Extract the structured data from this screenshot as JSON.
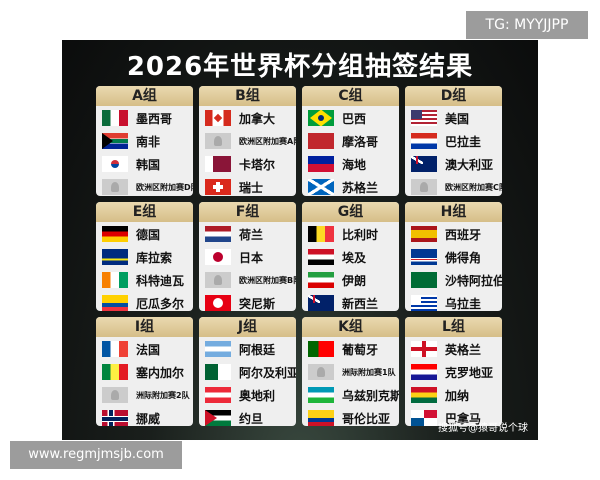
{
  "title": "2026年世界杯分组抽签结果",
  "badge": "TG: MYYJJPP",
  "website": "www.regmjmsjb.com",
  "credit": "搜狐号@猿哥说个球",
  "groups": [
    {
      "name": "A组",
      "teams": [
        {
          "name": "墨西哥",
          "flag": "mx"
        },
        {
          "name": "南非",
          "flag": "za"
        },
        {
          "name": "韩国",
          "flag": "kr"
        },
        {
          "name": "欧洲区附加赛D队",
          "flag": "ph"
        }
      ]
    },
    {
      "name": "B组",
      "teams": [
        {
          "name": "加拿大",
          "flag": "ca"
        },
        {
          "name": "欧洲区附加赛A队",
          "flag": "ph"
        },
        {
          "name": "卡塔尔",
          "flag": "qa"
        },
        {
          "name": "瑞士",
          "flag": "ch"
        }
      ]
    },
    {
      "name": "C组",
      "teams": [
        {
          "name": "巴西",
          "flag": "br"
        },
        {
          "name": "摩洛哥",
          "flag": "ma"
        },
        {
          "name": "海地",
          "flag": "ht"
        },
        {
          "name": "苏格兰",
          "flag": "sco"
        }
      ]
    },
    {
      "name": "D组",
      "teams": [
        {
          "name": "美国",
          "flag": "us"
        },
        {
          "name": "巴拉圭",
          "flag": "py"
        },
        {
          "name": "澳大利亚",
          "flag": "au"
        },
        {
          "name": "欧洲区附加赛C队",
          "flag": "ph"
        }
      ]
    },
    {
      "name": "E组",
      "teams": [
        {
          "name": "德国",
          "flag": "de"
        },
        {
          "name": "库拉索",
          "flag": "cw"
        },
        {
          "name": "科特迪瓦",
          "flag": "ci"
        },
        {
          "name": "厄瓜多尔",
          "flag": "ec"
        }
      ]
    },
    {
      "name": "F组",
      "teams": [
        {
          "name": "荷兰",
          "flag": "nl"
        },
        {
          "name": "日本",
          "flag": "jp"
        },
        {
          "name": "欧洲区附加赛B队",
          "flag": "ph"
        },
        {
          "name": "突尼斯",
          "flag": "tn"
        }
      ]
    },
    {
      "name": "G组",
      "teams": [
        {
          "name": "比利时",
          "flag": "be"
        },
        {
          "name": "埃及",
          "flag": "eg"
        },
        {
          "name": "伊朗",
          "flag": "ir"
        },
        {
          "name": "新西兰",
          "flag": "nz"
        }
      ]
    },
    {
      "name": "H组",
      "teams": [
        {
          "name": "西班牙",
          "flag": "es"
        },
        {
          "name": "佛得角",
          "flag": "cv"
        },
        {
          "name": "沙特阿拉伯",
          "flag": "sa"
        },
        {
          "name": "乌拉圭",
          "flag": "uy"
        }
      ]
    },
    {
      "name": "I组",
      "teams": [
        {
          "name": "法国",
          "flag": "fr"
        },
        {
          "name": "塞内加尔",
          "flag": "sn"
        },
        {
          "name": "洲际附加赛2队",
          "flag": "ph"
        },
        {
          "name": "挪威",
          "flag": "no"
        }
      ]
    },
    {
      "name": "J组",
      "teams": [
        {
          "name": "阿根廷",
          "flag": "ar"
        },
        {
          "name": "阿尔及利亚",
          "flag": "dz"
        },
        {
          "name": "奥地利",
          "flag": "at"
        },
        {
          "name": "约旦",
          "flag": "jo"
        }
      ]
    },
    {
      "name": "K组",
      "teams": [
        {
          "name": "葡萄牙",
          "flag": "pt"
        },
        {
          "name": "洲际附加赛1队",
          "flag": "ph"
        },
        {
          "name": "乌兹别克斯坦",
          "flag": "uz"
        },
        {
          "name": "哥伦比亚",
          "flag": "co"
        }
      ]
    },
    {
      "name": "L组",
      "teams": [
        {
          "name": "英格兰",
          "flag": "eng"
        },
        {
          "name": "克罗地亚",
          "flag": "hr"
        },
        {
          "name": "加纳",
          "flag": "gh"
        },
        {
          "name": "巴拿马",
          "flag": "pa"
        }
      ]
    }
  ]
}
